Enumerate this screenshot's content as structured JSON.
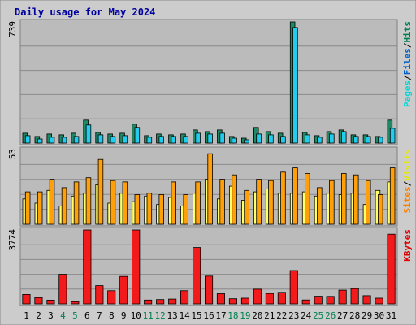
{
  "chart_data": {
    "type": "bar",
    "title": "Daily usage for May 2024",
    "categories": [
      "1",
      "2",
      "3",
      "4",
      "5",
      "6",
      "7",
      "8",
      "9",
      "10",
      "11",
      "12",
      "13",
      "14",
      "15",
      "16",
      "17",
      "18",
      "19",
      "20",
      "21",
      "22",
      "23",
      "24",
      "25",
      "26",
      "27",
      "28",
      "29",
      "30",
      "31"
    ],
    "weekend_days": [
      "4",
      "5",
      "11",
      "12",
      "18",
      "19",
      "25",
      "26"
    ],
    "panels": [
      {
        "id": "pages-files-hits",
        "ymax_label": "739",
        "ylim": [
          0,
          739
        ],
        "legend": [
          {
            "label": "Pages",
            "color": "#00d8d8"
          },
          {
            "label": "/",
            "color": "#000000"
          },
          {
            "label": "Files",
            "color": "#0060c8"
          },
          {
            "label": "/",
            "color": "#000000"
          },
          {
            "label": "Hits",
            "color": "#008050"
          }
        ],
        "series": [
          {
            "name": "Hits",
            "color": "#1e8a64",
            "values": [
              60,
              40,
              55,
              50,
              60,
              140,
              65,
              55,
              60,
              115,
              45,
              55,
              50,
              55,
              80,
              70,
              80,
              40,
              30,
              95,
              70,
              60,
              739,
              65,
              45,
              70,
              80,
              50,
              50,
              40,
              140
            ]
          },
          {
            "name": "Files",
            "color": "#22ccee",
            "values": [
              45,
              25,
              35,
              35,
              40,
              110,
              50,
              40,
              45,
              95,
              35,
              40,
              40,
              40,
              60,
              55,
              60,
              30,
              20,
              55,
              50,
              40,
              705,
              50,
              35,
              55,
              70,
              40,
              40,
              35,
              90
            ]
          }
        ]
      },
      {
        "id": "sites-visits",
        "ymax_label": "53",
        "ylim": [
          0,
          53
        ],
        "legend": [
          {
            "label": "Sites",
            "color": "#ff8000"
          },
          {
            "label": "/",
            "color": "#000000"
          },
          {
            "label": "Visits",
            "color": "#e8e800"
          }
        ],
        "series": [
          {
            "name": "Visits",
            "color": "#ffff66",
            "values": [
              18,
              15,
              24,
              13,
              20,
              22,
              28,
              15,
              22,
              16,
              20,
              14,
              19,
              13,
              22,
              32,
              18,
              27,
              17,
              23,
              25,
              22,
              22,
              23,
              20,
              22,
              21,
              22,
              14,
              24,
              30
            ]
          },
          {
            "name": "Sites",
            "color": "#ff9f0a",
            "values": [
              23,
              23,
              32,
              26,
              30,
              33,
              46,
              31,
              30,
              21,
              22,
              21,
              30,
              21,
              30,
              50,
              32,
              35,
              24,
              32,
              31,
              37,
              40,
              36,
              26,
              31,
              36,
              35,
              31,
              21,
              40
            ]
          }
        ]
      },
      {
        "id": "kbytes",
        "ymax_label": "3774",
        "ylim": [
          0,
          3774
        ],
        "legend": [
          {
            "label": "KBytes",
            "color": "#e00000"
          }
        ],
        "series": [
          {
            "name": "KBytes",
            "color": "#f21a1a",
            "values": [
              480,
              320,
              190,
              1510,
              110,
              3774,
              930,
              670,
              1400,
              3774,
              195,
              220,
              245,
              670,
              2880,
              1420,
              520,
              260,
              290,
              750,
              530,
              590,
              1700,
              200,
              390,
              380,
              700,
              780,
              420,
              290,
              3560
            ]
          }
        ]
      }
    ]
  }
}
